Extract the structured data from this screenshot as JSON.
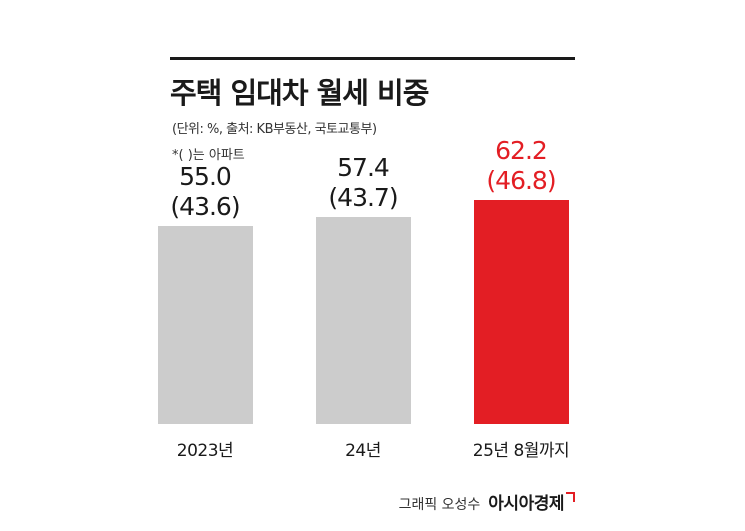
{
  "chart_data": {
    "type": "bar",
    "title": "주택 임대차 월세 비중",
    "subtitle": "(단위: %, 출처: KB부동산, 국토교통부)",
    "note": "*( )는 아파트",
    "categories": [
      "2023년",
      "24년",
      "25년 8월까지"
    ],
    "series": [
      {
        "values": [
          55.0,
          57.4,
          62.2
        ]
      },
      {
        "values": [
          43.6,
          43.7,
          46.8
        ]
      }
    ],
    "value_labels": [
      "55.0",
      "57.4",
      "62.2"
    ],
    "secondary_labels": [
      "(43.6)",
      "(43.7)",
      "(46.8)"
    ],
    "bar_colors": [
      "#cccccc",
      "#cccccc",
      "#e31e24"
    ],
    "label_colors": [
      "#1a1a1a",
      "#1a1a1a",
      "#e31e24"
    ],
    "ylim": [
      0,
      70
    ],
    "grid": false,
    "legend": "none"
  },
  "credit": {
    "text": "그래픽 오성수",
    "brand": "아시아경제"
  }
}
